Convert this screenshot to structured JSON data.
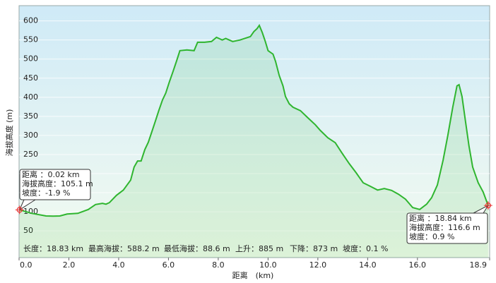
{
  "chart_data": {
    "type": "line",
    "xlabel": "距离　(km)",
    "ylabel": "海拔高度 (m)",
    "xlim": [
      0,
      18.9
    ],
    "ylim": [
      -20,
      640
    ],
    "xticks": [
      {
        "value": 0,
        "label": "0.0"
      },
      {
        "value": 2,
        "label": "2.0"
      },
      {
        "value": 4,
        "label": "4.0"
      },
      {
        "value": 6,
        "label": "6.0"
      },
      {
        "value": 8,
        "label": "8.0"
      },
      {
        "value": 10,
        "label": "10.0"
      },
      {
        "value": 12,
        "label": "12.0"
      },
      {
        "value": 14,
        "label": "14.0"
      },
      {
        "value": 16,
        "label": "16.0"
      },
      {
        "value": 18.9,
        "label": "18.9"
      }
    ],
    "yticks": [
      50,
      100,
      150,
      200,
      250,
      300,
      350,
      400,
      450,
      500,
      550,
      600
    ],
    "grid": true,
    "series": [
      {
        "color": "#2fb52f",
        "x": [
          0.02,
          0.51,
          1.08,
          1.37,
          1.64,
          1.93,
          2.36,
          2.78,
          3.07,
          3.35,
          3.49,
          3.63,
          3.91,
          4.19,
          4.48,
          4.62,
          4.76,
          4.9,
          5.05,
          5.19,
          5.33,
          5.47,
          5.61,
          5.76,
          5.89,
          6.03,
          6.18,
          6.32,
          6.46,
          6.74,
          7.03,
          7.17,
          7.45,
          7.73,
          7.93,
          8.16,
          8.3,
          8.58,
          8.87,
          9.15,
          9.29,
          9.43,
          9.56,
          9.65,
          9.77,
          9.89,
          10.0,
          10.2,
          10.3,
          10.45,
          10.6,
          10.7,
          10.85,
          11.0,
          11.3,
          11.6,
          11.9,
          12.1,
          12.4,
          12.7,
          12.97,
          13.26,
          13.54,
          13.82,
          14.1,
          14.4,
          14.67,
          14.96,
          15.24,
          15.52,
          15.81,
          16.09,
          16.37,
          16.57,
          16.8,
          17.03,
          17.22,
          17.42,
          17.59,
          17.67,
          17.79,
          17.93,
          18.07,
          18.22,
          18.44,
          18.64,
          18.84
        ],
        "values": [
          105.1,
          96,
          89,
          88.6,
          89,
          94,
          96,
          106,
          119,
          122,
          120,
          124,
          143,
          157,
          183,
          217,
          233,
          233,
          263,
          282,
          309,
          337,
          365,
          393,
          411,
          439,
          467,
          494,
          522,
          524,
          522,
          544,
          544,
          546,
          557,
          550,
          554,
          546,
          550,
          556,
          559,
          572,
          580,
          588.2,
          569,
          546,
          522,
          513,
          494,
          457,
          430,
          402,
          383,
          374,
          365,
          346,
          328,
          313,
          294,
          281,
          254,
          226,
          202,
          176,
          167,
          157,
          161,
          156,
          146,
          133,
          111,
          106,
          120,
          137,
          170,
          235,
          300,
          374,
          430,
          433,
          402,
          337,
          272,
          217,
          176,
          152,
          116.6
        ]
      }
    ],
    "stats": [
      "长度：18.83 km",
      "最高海拔：588.2 m",
      "最低海拔：88.6 m",
      "上升：885 m",
      "下降：873 m",
      "坡度：0.1 %"
    ],
    "callouts": [
      {
        "lines": [
          "距离 ：0.02 km",
          "海拔高度：105.1 m",
          "坡度：-1.9 %"
        ]
      },
      {
        "lines": [
          "距离 ：18.84 km",
          "海拔高度：116.6 m",
          "坡度：0.9 %"
        ]
      }
    ]
  }
}
